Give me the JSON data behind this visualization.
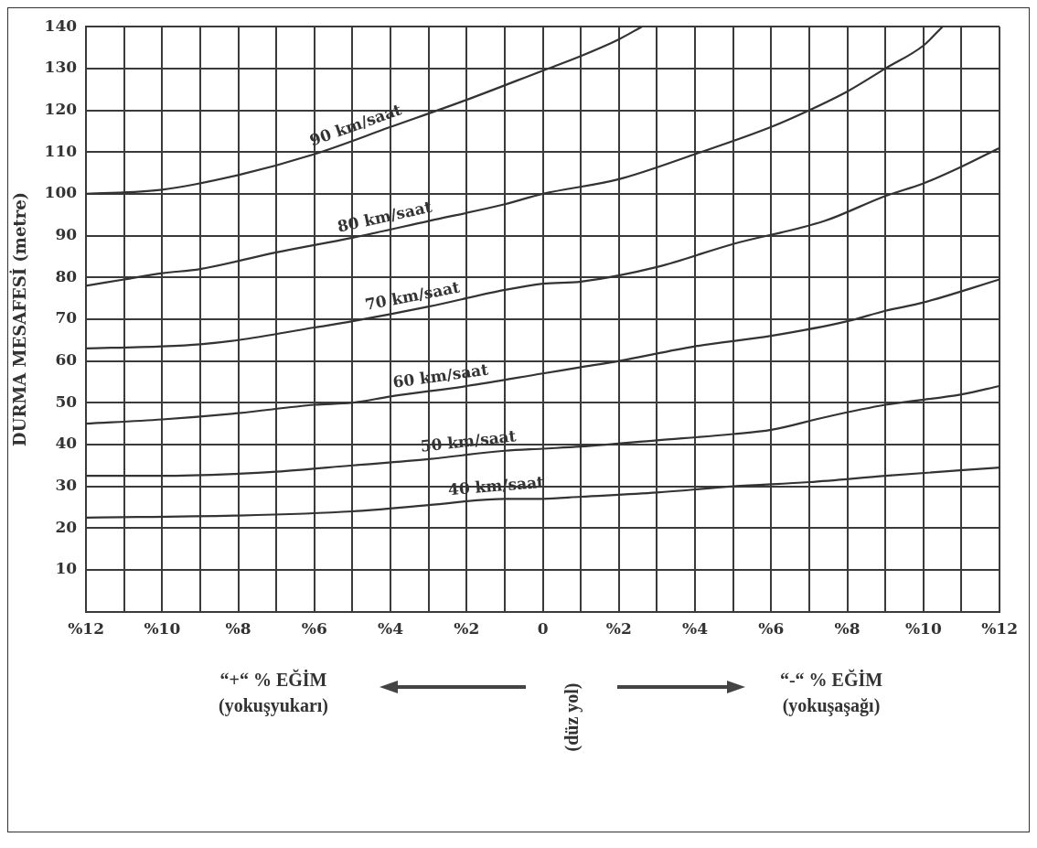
{
  "chart_data": {
    "type": "line",
    "ylabel": "DURMA MESAFESİ (metre)",
    "xlim": [
      12,
      -12
    ],
    "ylim": [
      0,
      140
    ],
    "xticks": [
      {
        "value": 12,
        "label": "%12"
      },
      {
        "value": 11,
        "label": null
      },
      {
        "value": 10,
        "label": "%10"
      },
      {
        "value": 9,
        "label": null
      },
      {
        "value": 8,
        "label": "%8"
      },
      {
        "value": 7,
        "label": null
      },
      {
        "value": 6,
        "label": "%6"
      },
      {
        "value": 5,
        "label": null
      },
      {
        "value": 4,
        "label": "%4"
      },
      {
        "value": 3,
        "label": null
      },
      {
        "value": 2,
        "label": "%2"
      },
      {
        "value": 1,
        "label": null
      },
      0,
      {
        "value": -1,
        "label": null
      },
      {
        "value": -2,
        "label": "%2"
      },
      {
        "value": -3,
        "label": null
      },
      {
        "value": -4,
        "label": "%4"
      },
      {
        "value": -5,
        "label": null
      },
      {
        "value": -6,
        "label": "%6"
      },
      {
        "value": -7,
        "label": null
      },
      {
        "value": -8,
        "label": "%8"
      },
      {
        "value": -9,
        "label": null
      },
      {
        "value": -10,
        "label": "%10"
      },
      {
        "value": -11,
        "label": null
      },
      {
        "value": -12,
        "label": "%12"
      }
    ],
    "yticks": [
      {
        "value": 0,
        "label": null
      },
      10,
      20,
      30,
      40,
      50,
      60,
      70,
      80,
      90,
      100,
      110,
      120,
      130,
      140
    ],
    "grid": true,
    "marker": "none",
    "line_style": "solid",
    "legend": false,
    "series": [
      {
        "name": "90 km/saat",
        "color": "#333333",
        "x": [
          12,
          10,
          8,
          6,
          4,
          2,
          0,
          -1,
          -2,
          -2.6
        ],
        "values": [
          100,
          101,
          104.5,
          109.5,
          116,
          122.5,
          129.5,
          133,
          137,
          140
        ]
      },
      {
        "name": "80 km/saat",
        "color": "#333333",
        "x": [
          12,
          11,
          10,
          9,
          7,
          5,
          3,
          1,
          0,
          -2,
          -4,
          -6,
          -7,
          -8,
          -9,
          -10,
          -10.5
        ],
        "values": [
          78,
          79.5,
          81,
          82,
          86,
          89.5,
          93.5,
          97.5,
          100,
          103.5,
          109.5,
          116,
          120,
          124.5,
          130,
          135.5,
          140
        ]
      },
      {
        "name": "70 km/saat",
        "color": "#333333",
        "x": [
          12,
          10,
          9,
          8,
          6,
          5,
          3,
          1,
          0,
          -1,
          -3,
          -5,
          -7.4,
          -9,
          -10,
          -11,
          -12
        ],
        "values": [
          63,
          63.5,
          64,
          65,
          68,
          69.5,
          73,
          77,
          78.5,
          79,
          82.5,
          88,
          93.5,
          99.5,
          102.5,
          106.5,
          111
        ]
      },
      {
        "name": "60 km/saat",
        "color": "#333333",
        "x": [
          12,
          10,
          8,
          6,
          5,
          4,
          2,
          0,
          -1,
          -2,
          -4,
          -6,
          -8,
          -9,
          -10,
          -12
        ],
        "values": [
          45,
          46,
          47.5,
          49.5,
          50,
          51.5,
          54,
          57,
          58.5,
          60,
          63.5,
          66,
          69.5,
          72,
          74,
          79.5
        ]
      },
      {
        "name": "50 km/saat",
        "color": "#333333",
        "x": [
          12,
          10,
          8,
          7,
          5,
          3,
          1,
          0,
          -1,
          -3,
          -5,
          -6,
          -7.4,
          -9,
          -11,
          -12
        ],
        "values": [
          32.5,
          32.5,
          33,
          33.5,
          35,
          36.5,
          38.5,
          39,
          39.5,
          41,
          42.5,
          43.5,
          46.5,
          49.5,
          52,
          54
        ]
      },
      {
        "name": "40 km/saat",
        "color": "#333333",
        "x": [
          12,
          8,
          5,
          3,
          1,
          0,
          -1,
          -3,
          -5,
          -7,
          -9,
          -12
        ],
        "values": [
          22.5,
          23,
          24,
          25.5,
          27,
          27,
          27.5,
          28.5,
          30,
          31,
          32.5,
          34.5
        ]
      }
    ],
    "annotations": [
      "“+“ % EĞİM",
      "(yokuşyukarı)",
      "(düz yol)",
      "“-“ % EĞİM",
      "(yokuşaşağı)"
    ]
  }
}
